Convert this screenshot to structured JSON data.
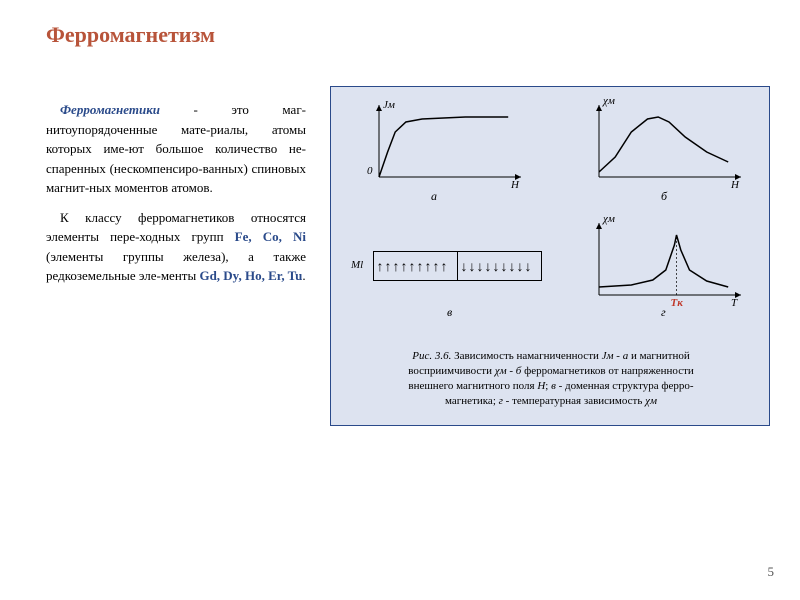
{
  "title": "Ферромагнетизм",
  "para1_term": "Ферромагнетики",
  "para1_rest": " - это маг-нитоупорядоченные мате-риалы, атомы которых име-ют большое количество не-спаренных (нескомпенсиро-ванных) спиновых магнит-ных моментов атомов.",
  "para2_a": "К классу ферромагнетиков относятся элементы пере-ходных групп ",
  "para2_elems1": "Fe, Co, Ni",
  "para2_b": " (элементы группы железа), а также редкоземельные эле-менты ",
  "para2_elems2": "Gd, Dy, Ho, Er, Tu",
  "para2_c": ".",
  "page_num": "5",
  "charts": {
    "a": {
      "type": "line",
      "x_label": "H",
      "y_label": "Jм",
      "origin_label": "0",
      "sub_label": "а",
      "stroke": "#000000",
      "stroke_width": 1.5,
      "points": [
        [
          0,
          0
        ],
        [
          8,
          25
        ],
        [
          15,
          45
        ],
        [
          25,
          55
        ],
        [
          40,
          58
        ],
        [
          80,
          60
        ],
        [
          120,
          60
        ]
      ],
      "xlim": [
        0,
        130
      ],
      "ylim": [
        0,
        70
      ]
    },
    "b": {
      "type": "line",
      "x_label": "H",
      "y_label": "χм",
      "sub_label": "б",
      "stroke": "#000000",
      "stroke_width": 1.5,
      "points": [
        [
          0,
          5
        ],
        [
          15,
          20
        ],
        [
          30,
          45
        ],
        [
          45,
          58
        ],
        [
          55,
          60
        ],
        [
          65,
          55
        ],
        [
          80,
          40
        ],
        [
          100,
          25
        ],
        [
          120,
          15
        ]
      ],
      "xlim": [
        0,
        130
      ],
      "ylim": [
        0,
        70
      ]
    },
    "c": {
      "type": "domain",
      "y_label": "Ml",
      "sub_label": "в",
      "arrow_count": 9,
      "border_color": "#000000"
    },
    "d": {
      "type": "line",
      "x_label": "T",
      "y_label": "χм",
      "sub_label": "г",
      "tk_label": "Tк",
      "tk_color": "#c0392b",
      "stroke": "#000000",
      "stroke_width": 1.5,
      "tk_x": 72,
      "points": [
        [
          0,
          8
        ],
        [
          30,
          10
        ],
        [
          50,
          15
        ],
        [
          62,
          25
        ],
        [
          70,
          50
        ],
        [
          72,
          60
        ],
        [
          76,
          45
        ],
        [
          84,
          25
        ],
        [
          100,
          14
        ],
        [
          120,
          8
        ]
      ],
      "xlim": [
        0,
        130
      ],
      "ylim": [
        0,
        70
      ]
    }
  },
  "caption_prefix": "Рис. 3.6.",
  "caption_line1": " Зависимость намагниченности ",
  "caption_jm": "Jм",
  "caption_dash_a": " - а ",
  "caption_line1b": " и магнитной",
  "caption_line2a": "восприимчивости ",
  "caption_chi": "χм",
  "caption_dash_b": " - б ",
  "caption_line2b": " ферромагнетиков от напряженности",
  "caption_line3a": "внешнего магнитного поля ",
  "caption_H": "H",
  "caption_line3b": ";  ",
  "caption_v": "в",
  "caption_line3c": " - доменная структура ферро-",
  "caption_line4a": "магнетика; ",
  "caption_g": "г",
  "caption_line4b": " - температурная зависимость ",
  "caption_chi2": "χм",
  "panel_bg": "#dde3f0",
  "panel_border": "#2a4a8a"
}
